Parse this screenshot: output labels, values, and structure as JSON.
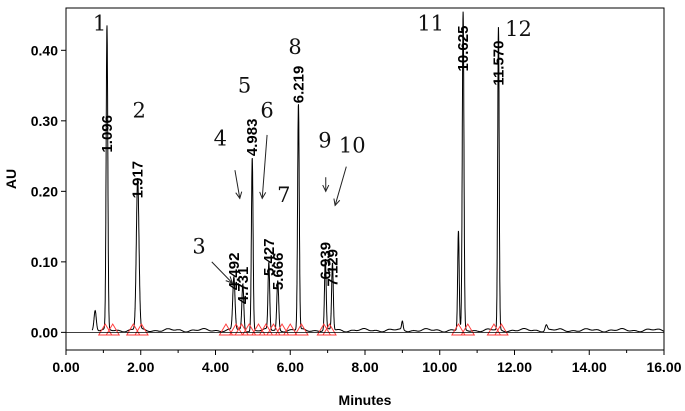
{
  "chart_data": {
    "type": "line",
    "xlabel": "Minutes",
    "ylabel": "AU",
    "xlim": [
      0,
      16
    ],
    "ylim": [
      -0.025,
      0.46
    ],
    "x_ticks": [
      "0.00",
      "2.00",
      "4.00",
      "6.00",
      "8.00",
      "10.00",
      "12.00",
      "14.00",
      "16.00"
    ],
    "y_ticks": [
      "0.00",
      "0.10",
      "0.20",
      "0.30",
      "0.40"
    ],
    "x_tick_values": [
      0,
      2,
      4,
      6,
      8,
      10,
      12,
      14,
      16
    ],
    "y_tick_values": [
      0,
      0.1,
      0.2,
      0.3,
      0.4
    ],
    "series": [
      {
        "color": "#000000",
        "baseline": 0.003,
        "peaks": [
          {
            "rt": 0.78,
            "height": 0.028,
            "width": 0.03
          },
          {
            "rt": 1.096,
            "height": 0.43,
            "width": 0.022
          },
          {
            "rt": 1.917,
            "height": 0.215,
            "width": 0.035
          },
          {
            "rt": 4.492,
            "height": 0.075,
            "width": 0.03
          },
          {
            "rt": 4.731,
            "height": 0.065,
            "width": 0.025
          },
          {
            "rt": 4.983,
            "height": 0.245,
            "width": 0.022
          },
          {
            "rt": 5.427,
            "height": 0.095,
            "width": 0.022
          },
          {
            "rt": 5.666,
            "height": 0.07,
            "width": 0.025
          },
          {
            "rt": 6.219,
            "height": 0.32,
            "width": 0.022
          },
          {
            "rt": 6.939,
            "height": 0.1,
            "width": 0.022
          },
          {
            "rt": 7.129,
            "height": 0.095,
            "width": 0.022
          },
          {
            "rt": 9.0,
            "height": 0.012,
            "width": 0.02
          },
          {
            "rt": 10.5,
            "height": 0.14,
            "width": 0.02
          },
          {
            "rt": 10.625,
            "height": 0.45,
            "width": 0.022
          },
          {
            "rt": 11.57,
            "height": 0.43,
            "width": 0.02
          },
          {
            "rt": 12.85,
            "height": 0.008,
            "width": 0.03
          }
        ],
        "marker_color": "#ff3b3b",
        "markers_x": [
          1.05,
          1.25,
          1.8,
          2.02,
          4.28,
          4.55,
          4.7,
          4.9,
          5.15,
          5.35,
          5.55,
          5.78,
          6.0,
          6.3,
          6.9,
          7.05,
          10.5,
          10.75,
          11.45,
          11.65
        ]
      }
    ],
    "retention_labels": [
      {
        "text": "1.096",
        "x": 1.096,
        "y": 0.255
      },
      {
        "text": "1.917",
        "x": 1.917,
        "y": 0.19
      },
      {
        "text": "4.492",
        "x": 4.492,
        "y": 0.06
      },
      {
        "text": "4.731",
        "x": 4.731,
        "y": 0.04
      },
      {
        "text": "4.983",
        "x": 4.983,
        "y": 0.25
      },
      {
        "text": "5.427",
        "x": 5.427,
        "y": 0.08
      },
      {
        "text": "5.666",
        "x": 5.666,
        "y": 0.06
      },
      {
        "text": "6.219",
        "x": 6.219,
        "y": 0.325
      },
      {
        "text": "6.939",
        "x": 6.939,
        "y": 0.075
      },
      {
        "text": "7.129",
        "x": 7.129,
        "y": 0.065
      },
      {
        "text": "10.625",
        "x": 10.625,
        "y": 0.37
      },
      {
        "text": "11.570",
        "x": 11.57,
        "y": 0.35
      }
    ],
    "peak_numbers": [
      {
        "text": "1",
        "x": 0.72,
        "y": 0.428
      },
      {
        "text": "2",
        "x": 1.78,
        "y": 0.305
      },
      {
        "text": "3",
        "x": 3.38,
        "y": 0.112
      },
      {
        "text": "4",
        "x": 3.95,
        "y": 0.265
      },
      {
        "text": "5",
        "x": 4.6,
        "y": 0.34
      },
      {
        "text": "6",
        "x": 5.2,
        "y": 0.305
      },
      {
        "text": "7",
        "x": 5.65,
        "y": 0.185
      },
      {
        "text": "8",
        "x": 5.95,
        "y": 0.395
      },
      {
        "text": "9",
        "x": 6.75,
        "y": 0.262
      },
      {
        "text": "10",
        "x": 7.3,
        "y": 0.255
      },
      {
        "text": "11",
        "x": 9.4,
        "y": 0.428
      },
      {
        "text": "12",
        "x": 11.75,
        "y": 0.42
      }
    ],
    "arrows": [
      {
        "from": [
          3.9,
          0.1
        ],
        "to": [
          4.45,
          0.07
        ]
      },
      {
        "from": [
          4.52,
          0.23
        ],
        "to": [
          4.65,
          0.19
        ]
      },
      {
        "from": [
          5.38,
          0.28
        ],
        "to": [
          5.25,
          0.19
        ]
      },
      {
        "from": [
          6.95,
          0.22
        ],
        "to": [
          6.95,
          0.2
        ]
      },
      {
        "from": [
          7.5,
          0.235
        ],
        "to": [
          7.2,
          0.18
        ]
      }
    ]
  }
}
